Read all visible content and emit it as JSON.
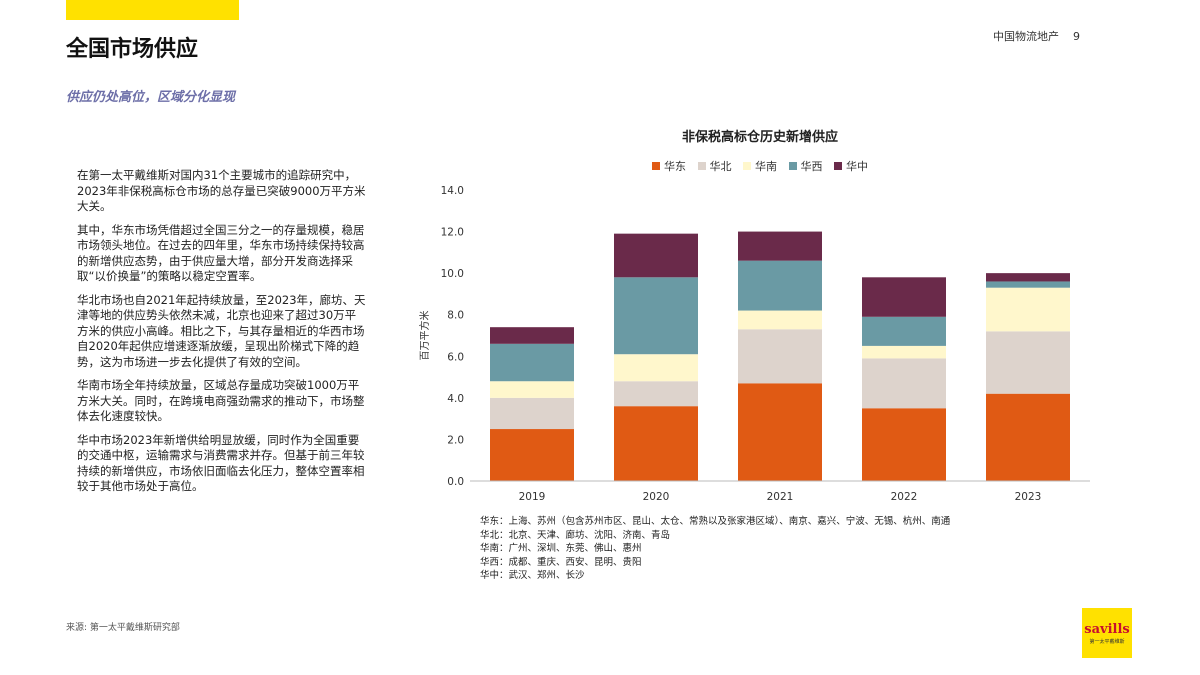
{
  "header": {
    "title": "全国市场供应",
    "company": "中国物流地产",
    "page_number": "9"
  },
  "subtitle": "供应仍处高位，区域分化显现",
  "body_paragraphs": [
    "在第一太平戴维斯对国内31个主要城市的追踪研究中，2023年非保税高标仓市场的总存量已突破9000万平方米大关。",
    "其中，华东市场凭借超过全国三分之一的存量规模，稳居市场领头地位。在过去的四年里，华东市场持续保持较高的新增供应态势，由于供应量大增，部分开发商选择采取“以价换量”的策略以稳定空置率。",
    "华北市场也自2021年起持续放量，至2023年，廊坊、天津等地的供应势头依然未减，北京也迎来了超过30万平方米的供应小高峰。相比之下，与其存量相近的华西市场自2020年起供应增速逐渐放缓，呈现出阶梯式下降的趋势，这为市场进一步去化提供了有效的空间。",
    "华南市场全年持续放量，区域总存量成功突破1000万平方米大关。同时，在跨境电商强劲需求的推动下，市场整体去化速度较快。",
    "华中市场2023年新增供给明显放缓，同时作为全国重要的交通中枢，运输需求与消费需求并存。但基于前三年较持续的新增供应，市场依旧面临去化压力，整体空置率相较于其他市场处于高位。"
  ],
  "source": "来源: 第一太平戴维斯研究部",
  "chart_data": {
    "type": "bar",
    "stacked": true,
    "title": "非保税高标仓历史新增供应",
    "ylabel": "百万平方米",
    "xlabel": "",
    "categories": [
      "2019",
      "2020",
      "2021",
      "2022",
      "2023"
    ],
    "ylim": [
      0,
      14
    ],
    "yticks": [
      "0.0",
      "2.0",
      "4.0",
      "6.0",
      "8.0",
      "10.0",
      "12.0",
      "14.0"
    ],
    "grid": false,
    "legend_position": "top",
    "series": [
      {
        "name": "华东",
        "color": "#e05a14",
        "values": [
          2.5,
          3.6,
          4.7,
          3.5,
          4.2
        ]
      },
      {
        "name": "华北",
        "color": "#ddd3cc",
        "values": [
          1.5,
          1.2,
          2.6,
          2.4,
          3.0
        ]
      },
      {
        "name": "华南",
        "color": "#fff7cc",
        "values": [
          0.8,
          1.3,
          0.9,
          0.6,
          2.1
        ]
      },
      {
        "name": "华西",
        "color": "#6a9aa4",
        "values": [
          1.8,
          3.7,
          2.4,
          1.4,
          0.3
        ]
      },
      {
        "name": "华中",
        "color": "#6a2a4a",
        "values": [
          0.8,
          2.1,
          1.4,
          1.9,
          0.4
        ]
      }
    ]
  },
  "region_notes": [
    "华东：上海、苏州（包含苏州市区、昆山、太仓、常熟以及张家港区域）、南京、嘉兴、宁波、无锡、杭州、南通",
    "华北：北京、天津、廊坊、沈阳、济南、青岛",
    "华南：广州、深圳、东莞、佛山、惠州",
    "华西：成都、重庆、西安、昆明、贵阳",
    "华中：武汉、郑州、长沙"
  ],
  "logo": {
    "text": "savills",
    "sub": "第一太平戴维斯"
  }
}
